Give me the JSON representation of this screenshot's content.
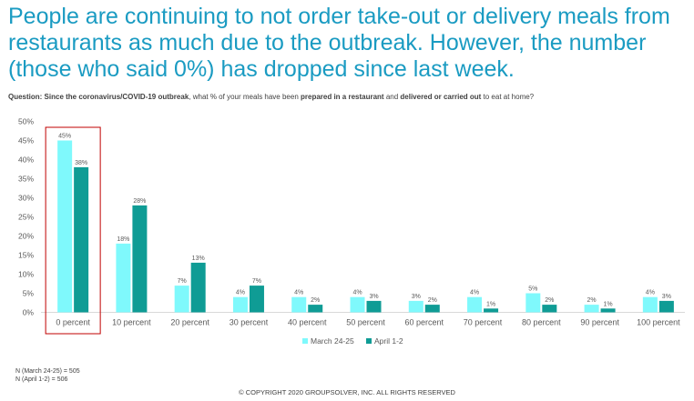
{
  "headline": "People are continuing to not order take-out or delivery meals from restaurants as much due to the outbreak. However, the number (those who said 0%) has dropped since last week.",
  "question": {
    "prefix": "Question: Since the coronavirus/COVID-19 outbreak",
    "part1": ", what % of your meals have been ",
    "bold1": "prepared in a restaurant",
    "part2": " and ",
    "bold2": "delivered or carried out",
    "part3": " to eat at home?"
  },
  "chart_data": {
    "type": "bar",
    "categories": [
      "0 percent",
      "10 percent",
      "20 percent",
      "30 percent",
      "40 percent",
      "50 percent",
      "60 percent",
      "70 percent",
      "80 percent",
      "90 percent",
      "100 percent"
    ],
    "series": [
      {
        "name": "March 24-25",
        "values": [
          45,
          18,
          7,
          4,
          4,
          4,
          3,
          4,
          5,
          2,
          4
        ],
        "color": "#7ff9fc"
      },
      {
        "name": "April 1-2",
        "values": [
          38,
          28,
          13,
          7,
          2,
          3,
          2,
          1,
          2,
          1,
          3
        ],
        "color": "#0f9c95"
      }
    ],
    "ylim": [
      0,
      50
    ],
    "yticks": [
      0,
      5,
      10,
      15,
      20,
      25,
      30,
      35,
      40,
      45,
      50
    ],
    "value_suffix": "%",
    "highlighted_category": "0 percent",
    "highlight_color": "#c00000",
    "legend_position": "bottom"
  },
  "notes": [
    "N (March 24-25) = 505",
    "N (April 1-2) = 506"
  ],
  "copyright": "© COPYRIGHT 2020 GROUPSOLVER, INC. ALL RIGHTS RESERVED"
}
